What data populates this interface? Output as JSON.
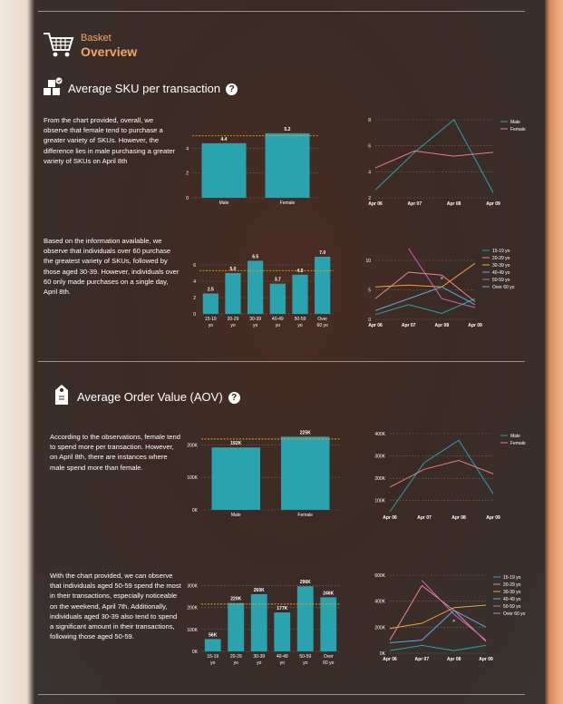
{
  "header": {
    "label": "Basket",
    "title": "Overview"
  },
  "colors": {
    "accent": "#f0a860",
    "bar": "#2aa3ae",
    "male": "#2aa3ae",
    "female": "#e87e8a",
    "refline": "#e0a020",
    "grid": "#7a706b"
  },
  "sections": [
    {
      "title": "Average SKU per transaction",
      "help": "?"
    },
    {
      "title": "Average Order Value (AOV)",
      "help": "?"
    }
  ],
  "texts": {
    "sku_gender": "From the chart provided, overall, we observe that female tend to purchase a greater variety of SKUs. However, the difference lies in male purchasing a greater variety of SKUs on April 8th",
    "sku_age": "Based on the information available, we observe that individuals over 60 purchase the greatest variety of SKUs, followed by those aged 30-39. However, individuals over 60 only made purchases on a single day, April 8th.",
    "aov_gender": "According to the observations, female tend to spend more per transaction. However, on April 8th, there are instances where male spend more than female.",
    "aov_age": "With the chart provided, we can observe that individuals aged 50-59 spend the most in their transactions, especially noticeable on the weekend, April 7th. Additionally, individuals aged 30-39 also tend to spend a significant amount in their transactions, following those aged 50-59."
  },
  "chart_data": [
    {
      "id": "sku_gender_bar",
      "type": "bar",
      "categories": [
        "Male",
        "Female"
      ],
      "values": [
        4.4,
        5.2
      ],
      "labels": [
        "4.4",
        "5.2"
      ],
      "ylim": [
        0,
        6
      ],
      "yticks": [
        0,
        2,
        4
      ],
      "ytick_labels": [
        "0",
        "2",
        "4"
      ],
      "refline": 5.0
    },
    {
      "id": "sku_gender_line",
      "type": "line",
      "x": [
        "Apr 06",
        "Apr 07",
        "Apr 08",
        "Apr 09"
      ],
      "ylim": [
        2,
        8
      ],
      "yticks": [
        2,
        4,
        6,
        8
      ],
      "ytick_labels": [
        "2",
        "4",
        "6",
        "8"
      ],
      "legend": "top-right",
      "series": [
        {
          "name": "Male",
          "color": "#2aa3ae",
          "values": [
            2.6,
            5.5,
            8.0,
            2.4
          ]
        },
        {
          "name": "Female",
          "color": "#e87e8a",
          "values": [
            4.3,
            5.6,
            5.2,
            5.5
          ]
        }
      ]
    },
    {
      "id": "sku_age_bar",
      "type": "bar",
      "categories": [
        "15-19 yo",
        "20-29 yo",
        "30-39 yo",
        "40-49 yo",
        "50-59 yo",
        "Over 60 yo"
      ],
      "values": [
        2.5,
        5.0,
        6.5,
        3.7,
        4.8,
        7.0
      ],
      "labels": [
        "2.5",
        "5.0",
        "6.5",
        "3.7",
        "4.8",
        "7.0"
      ],
      "ylim": [
        0,
        8
      ],
      "yticks": [
        0,
        2,
        4,
        6
      ],
      "ytick_labels": [
        "0",
        "2",
        "4",
        "6"
      ],
      "refline": 5.3
    },
    {
      "id": "sku_age_line",
      "type": "line",
      "x": [
        "Apr 06",
        "Apr 07",
        "Apr 08",
        "Apr 09"
      ],
      "ylim": [
        0,
        12
      ],
      "yticks": [
        0,
        5,
        10
      ],
      "ytick_labels": [
        "0",
        "5",
        "10"
      ],
      "legend": "top-right",
      "series": [
        {
          "name": "15-19 yo",
          "color": "#2aa3ae",
          "values": [
            0.8,
            2.5,
            1.0,
            3.5
          ]
        },
        {
          "name": "20-29 yo",
          "color": "#e58a98",
          "values": [
            3.5,
            8.0,
            7.5,
            3.0
          ]
        },
        {
          "name": "30-39 yo",
          "color": "#eba830",
          "values": [
            5.5,
            5.8,
            5.5,
            9.5
          ]
        },
        {
          "name": "40-49 yo",
          "color": "#5ea8e8",
          "values": [
            1.5,
            3.5,
            5.5,
            2.5
          ]
        },
        {
          "name": "50-59 yo",
          "color": "#d066c0",
          "values": [
            null,
            12.0,
            3.5,
            2.0
          ]
        },
        {
          "name": "Over 60 yo",
          "color": "#9a9a9a",
          "values": [
            null,
            null,
            7.0,
            null
          ]
        }
      ]
    },
    {
      "id": "aov_gender_bar",
      "type": "bar",
      "categories": [
        "Male",
        "Female"
      ],
      "values": [
        192,
        225
      ],
      "labels": [
        "192K",
        "225K"
      ],
      "ylim": [
        0,
        240
      ],
      "yticks": [
        0,
        100,
        200
      ],
      "ytick_labels": [
        "0K",
        "100K",
        "200K"
      ],
      "refline": 218
    },
    {
      "id": "aov_gender_line",
      "type": "line",
      "x": [
        "Apr 06",
        "Apr 07",
        "Apr 08",
        "Apr 09"
      ],
      "ylim": [
        50,
        400
      ],
      "yticks": [
        100,
        200,
        300,
        400
      ],
      "ytick_labels": [
        "100K",
        "200K",
        "300K",
        "400K"
      ],
      "legend": "top-right",
      "series": [
        {
          "name": "Male",
          "color": "#2aa3ae",
          "values": [
            50,
            270,
            370,
            130
          ]
        },
        {
          "name": "Female",
          "color": "#e87e8a",
          "values": [
            160,
            240,
            280,
            220
          ]
        }
      ]
    },
    {
      "id": "aov_age_bar",
      "type": "bar",
      "categories": [
        "15-19 yo",
        "20-29 yo",
        "30-39 yo",
        "40-49 yo",
        "50-59 yo",
        "Over 60 yo"
      ],
      "values": [
        56,
        220,
        260,
        177,
        296,
        246
      ],
      "labels": [
        "56K",
        "220K",
        "260K",
        "177K",
        "296K",
        "246K"
      ],
      "ylim": [
        0,
        330
      ],
      "yticks": [
        0,
        100,
        200,
        300
      ],
      "ytick_labels": [
        "0K",
        "100K",
        "200K",
        "300K"
      ],
      "refline": 215
    },
    {
      "id": "aov_age_line",
      "type": "line",
      "x": [
        "Apr 06",
        "Apr 07",
        "Apr 08",
        "Apr 09"
      ],
      "ylim": [
        0,
        600
      ],
      "yticks": [
        0,
        200,
        400,
        600
      ],
      "ytick_labels": [
        "0K",
        "200K",
        "400K",
        "600K"
      ],
      "legend": "top-right",
      "series": [
        {
          "name": "15-19 yo",
          "color": "#2aa3ae",
          "values": [
            20,
            60,
            20,
            60
          ]
        },
        {
          "name": "20-29 yo",
          "color": "#e58a98",
          "values": [
            100,
            520,
            330,
            90
          ]
        },
        {
          "name": "30-39 yo",
          "color": "#eba830",
          "values": [
            190,
            230,
            350,
            370
          ]
        },
        {
          "name": "40-49 yo",
          "color": "#5ea8e8",
          "values": [
            80,
            100,
            330,
            200
          ]
        },
        {
          "name": "50-59 yo",
          "color": "#d066c0",
          "values": [
            null,
            560,
            300,
            100
          ]
        },
        {
          "name": "Over 60 yo",
          "color": "#9a9a9a",
          "values": [
            null,
            null,
            250,
            null
          ]
        }
      ]
    }
  ]
}
